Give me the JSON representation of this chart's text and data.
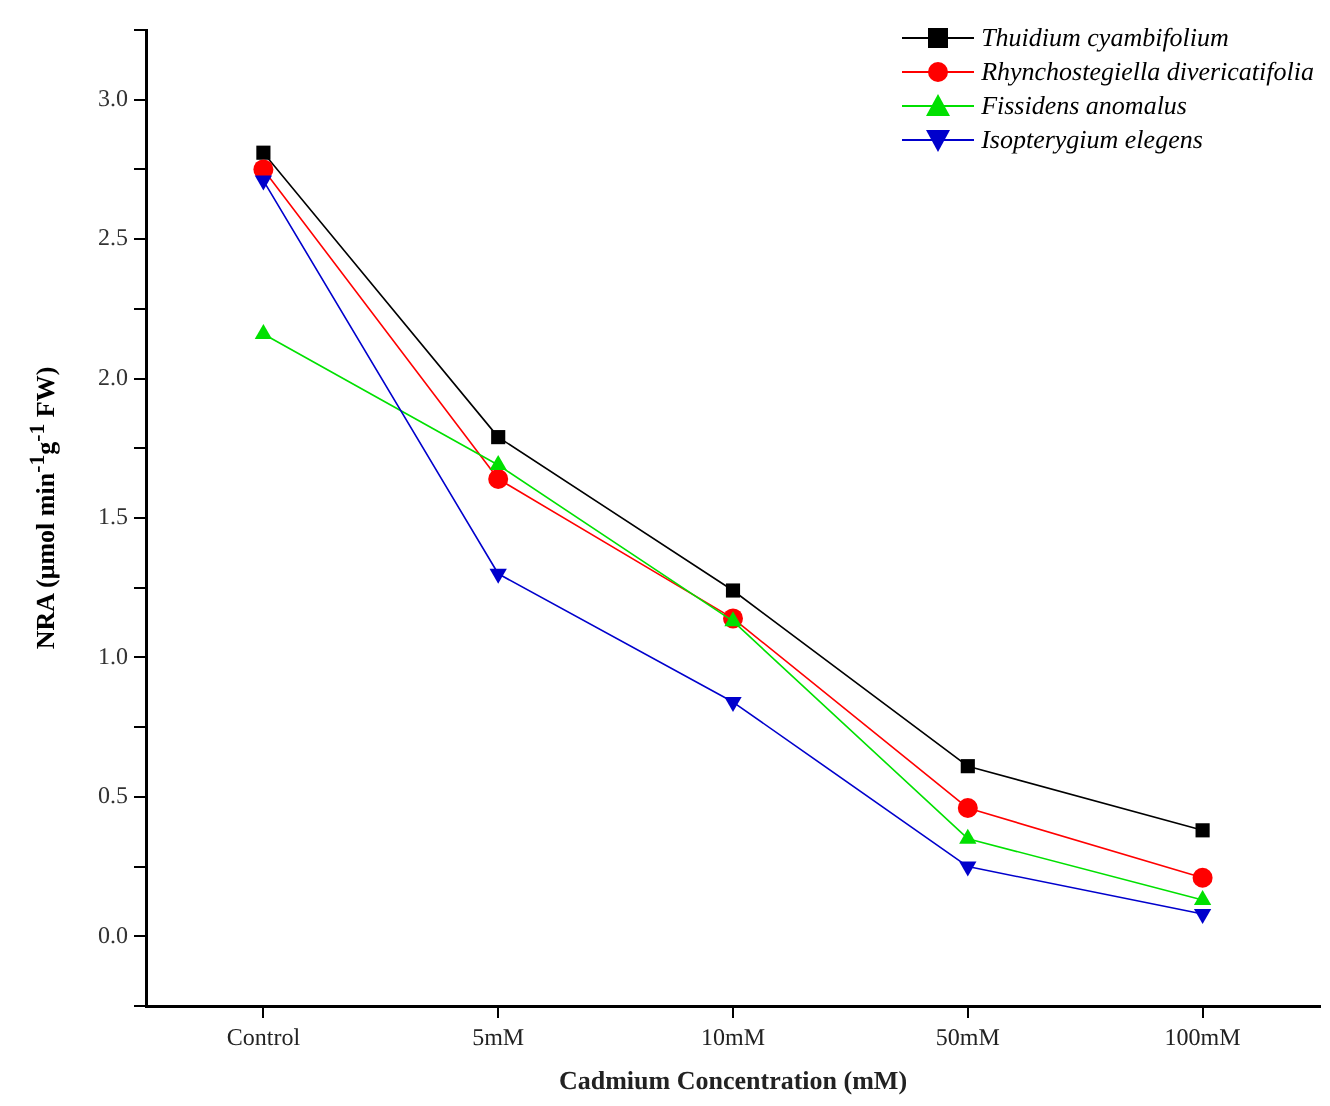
{
  "chart_data": {
    "type": "line",
    "xlabel": "Cadmium Concentration (mM)",
    "ylabel": "NRA (μmol min$^{-1}$g$^{-1}$ FW)",
    "categories": [
      "Control",
      "5mM",
      "10mM",
      "50mM",
      "100mM"
    ],
    "ylim": [
      -0.25,
      3.25
    ],
    "yticks": [
      {
        "value": -0.25,
        "label": null
      },
      {
        "value": 0,
        "label": "0.0"
      },
      {
        "value": 0.25,
        "label": null
      },
      {
        "value": 0.5,
        "label": "0.5"
      },
      {
        "value": 0.75,
        "label": null
      },
      {
        "value": 1,
        "label": "1.0"
      },
      {
        "value": 1.25,
        "label": null
      },
      {
        "value": 1.5,
        "label": "1.5"
      },
      {
        "value": 1.75,
        "label": null
      },
      {
        "value": 2,
        "label": "2.0"
      },
      {
        "value": 2.25,
        "label": null
      },
      {
        "value": 2.5,
        "label": "2.5"
      },
      {
        "value": 2.75,
        "label": null
      },
      {
        "value": 3,
        "label": "3.0"
      },
      {
        "value": 3.25,
        "label": null
      }
    ],
    "grid": false,
    "legend": "top right",
    "line_style": "solid",
    "series": [
      {
        "name": "Thuidium cyambifolium",
        "color": "#000000",
        "marker": "square",
        "values": [
          2.81,
          1.79,
          1.24,
          0.61,
          0.38
        ]
      },
      {
        "name": "Rhynchostegiella divericatifolia",
        "color": "#ff0000",
        "marker": "circle",
        "values": [
          2.75,
          1.64,
          1.14,
          0.46,
          0.21
        ]
      },
      {
        "name": "Fissidens anomalus",
        "color": "#00e000",
        "marker": "triangle",
        "values": [
          2.16,
          1.69,
          1.13,
          0.35,
          0.13
        ]
      },
      {
        "name": "Isopterygium elegens",
        "color": "#0000cc",
        "marker": "triangle-down",
        "values": [
          2.71,
          1.3,
          0.84,
          0.25,
          0.08
        ]
      }
    ]
  }
}
